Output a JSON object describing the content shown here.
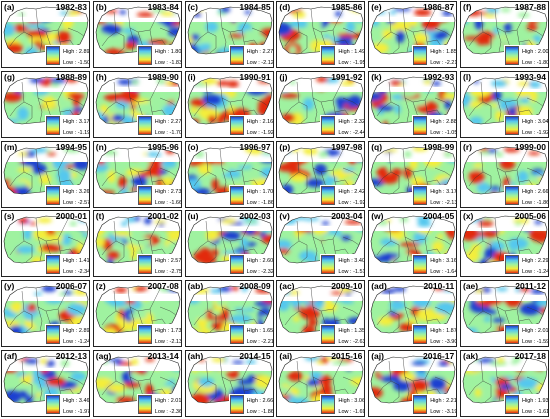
{
  "figure": {
    "panels": [
      {
        "label": "(a)",
        "years": "1982-83",
        "high": "2.89",
        "low": "-1.50"
      },
      {
        "label": "(b)",
        "years": "1983-84",
        "high": "1.80",
        "low": "-1.83"
      },
      {
        "label": "(c)",
        "years": "1984-85",
        "high": "2.27",
        "low": "-2.12"
      },
      {
        "label": "(d)",
        "years": "1985-86",
        "high": "1.49",
        "low": "-1.95"
      },
      {
        "label": "(e)",
        "years": "1986-87",
        "high": "1.85",
        "low": "-2.21"
      },
      {
        "label": "(f)",
        "years": "1987-88",
        "high": "2.00",
        "low": "-1.80"
      },
      {
        "label": "(g)",
        "years": "1988-89",
        "high": "3.17",
        "low": "-1.19"
      },
      {
        "label": "(h)",
        "years": "1989-90",
        "high": "2.27",
        "low": "-1.70"
      },
      {
        "label": "(i)",
        "years": "1990-91",
        "high": "2.16",
        "low": "-1.92"
      },
      {
        "label": "(j)",
        "years": "1991-92",
        "high": "2.32",
        "low": "-2.44"
      },
      {
        "label": "(k)",
        "years": "1992-93",
        "high": "2.88",
        "low": "-1.05"
      },
      {
        "label": "(l)",
        "years": "1993-94",
        "high": "3.04",
        "low": "-1.92"
      },
      {
        "label": "(m)",
        "years": "1994-95",
        "high": "3.26",
        "low": "-2.57"
      },
      {
        "label": "(n)",
        "years": "1995-96",
        "high": "2.73",
        "low": "-1.66"
      },
      {
        "label": "(o)",
        "years": "1996-97",
        "high": "1.70",
        "low": "-1.86"
      },
      {
        "label": "(p)",
        "years": "1997-98",
        "high": "2.42",
        "low": "-1.92"
      },
      {
        "label": "(q)",
        "years": "1998-99",
        "high": "3.17",
        "low": "-2.13"
      },
      {
        "label": "(r)",
        "years": "1999-00",
        "high": "2.66",
        "low": "-1.86"
      },
      {
        "label": "(s)",
        "years": "2000-01",
        "high": "1.41",
        "low": "-2.34"
      },
      {
        "label": "(t)",
        "years": "2001-02",
        "high": "2.57",
        "low": "-2.75"
      },
      {
        "label": "(u)",
        "years": "2002-03",
        "high": "2.60",
        "low": "-2.32"
      },
      {
        "label": "(v)",
        "years": "2003-04",
        "high": "3.40",
        "low": "-1.51"
      },
      {
        "label": "(w)",
        "years": "2004-05",
        "high": "3.16",
        "low": "-1.64"
      },
      {
        "label": "(x)",
        "years": "2005-06",
        "high": "2.29",
        "low": "-1.24"
      },
      {
        "label": "(y)",
        "years": "2006-07",
        "high": "2.89",
        "low": "-1.24"
      },
      {
        "label": "(z)",
        "years": "2007-08",
        "high": "1.73",
        "low": "-2.13"
      },
      {
        "label": "(ab)",
        "years": "2008-09",
        "high": "1.65",
        "low": "-2.21"
      },
      {
        "label": "(ac)",
        "years": "2009-10",
        "high": "1.35",
        "low": "-2.63"
      },
      {
        "label": "(ad)",
        "years": "2010-11",
        "high": "1.87",
        "low": "-3.90"
      },
      {
        "label": "(ae)",
        "years": "2011-12",
        "high": "2.01",
        "low": "-1.59"
      },
      {
        "label": "(af)",
        "years": "2012-13",
        "high": "3.46",
        "low": "-1.97"
      },
      {
        "label": "(ag)",
        "years": "2013-14",
        "high": "2.01",
        "low": "-2.36"
      },
      {
        "label": "(ah)",
        "years": "2014-15",
        "high": "2.66",
        "low": "-1.86"
      },
      {
        "label": "(ai)",
        "years": "2015-16",
        "high": "3.06",
        "low": "-1.69"
      },
      {
        "label": "(aj)",
        "years": "2016-17",
        "high": "2.21",
        "low": "-3.19"
      },
      {
        "label": "(ak)",
        "years": "2017-18",
        "high": "1.93",
        "low": "-1.61"
      }
    ],
    "legend_text": {
      "high_prefix": "High :",
      "low_prefix": "Low :"
    },
    "colors": {
      "high": "#1f3fd0",
      "mid_high": "#55c8ee",
      "mid": "#9ff2a0",
      "mid_low": "#f4ee3a",
      "low": "#e22a10"
    }
  }
}
